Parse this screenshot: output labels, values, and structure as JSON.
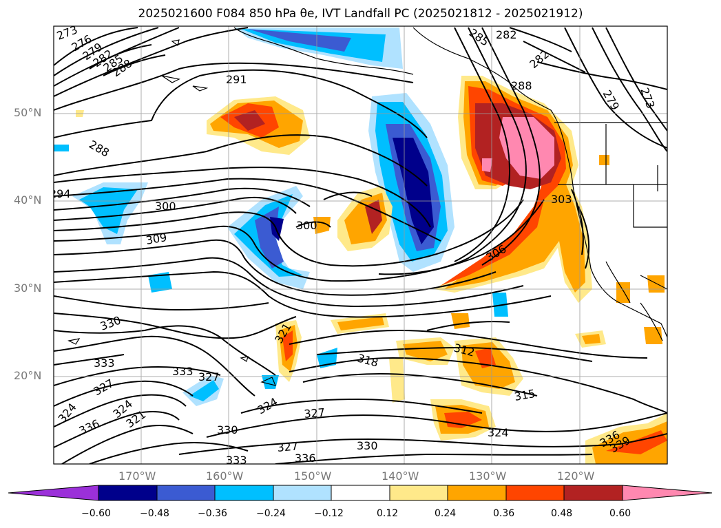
{
  "title": "2025021600 F084 850 hPa θe, IVT Landfall PC (2025021812 - 2025021912)",
  "axes": {
    "lat_labels": [
      "50°N",
      "40°N",
      "30°N",
      "20°N"
    ],
    "lon_labels": [
      "170°W",
      "160°W",
      "150°W",
      "140°W",
      "130°W",
      "120°W"
    ]
  },
  "colorbar": {
    "ticks": [
      "−0.60",
      "−0.48",
      "−0.36",
      "−0.24",
      "−0.12",
      "0.12",
      "0.24",
      "0.36",
      "0.48",
      "0.60"
    ],
    "colors": [
      "#9b30d9",
      "#00008b",
      "#3b5bd2",
      "#00bfff",
      "#b0e2ff",
      "#ffffff",
      "#ffe98a",
      "#ffa500",
      "#ff4500",
      "#b22222",
      "#ff88b0"
    ]
  },
  "contour_labels": [
    {
      "text": "273"
    },
    {
      "text": "276"
    },
    {
      "text": "279"
    },
    {
      "text": "282"
    },
    {
      "text": "285"
    },
    {
      "text": "288"
    },
    {
      "text": "291"
    },
    {
      "text": "288"
    },
    {
      "text": "294"
    },
    {
      "text": "300"
    },
    {
      "text": "309"
    },
    {
      "text": "300"
    },
    {
      "text": "285"
    },
    {
      "text": "282"
    },
    {
      "text": "282"
    },
    {
      "text": "288"
    },
    {
      "text": "279"
    },
    {
      "text": "273"
    },
    {
      "text": "303"
    },
    {
      "text": "306"
    },
    {
      "text": "330"
    },
    {
      "text": "333"
    },
    {
      "text": "327"
    },
    {
      "text": "324"
    },
    {
      "text": "336"
    },
    {
      "text": "321"
    },
    {
      "text": "324"
    },
    {
      "text": "333"
    },
    {
      "text": "327"
    },
    {
      "text": "321"
    },
    {
      "text": "318"
    },
    {
      "text": "312"
    },
    {
      "text": "315"
    },
    {
      "text": "324"
    },
    {
      "text": "330"
    },
    {
      "text": "327"
    },
    {
      "text": "336"
    },
    {
      "text": "333"
    },
    {
      "text": "330"
    },
    {
      "text": "327"
    },
    {
      "text": "324"
    },
    {
      "text": "336"
    },
    {
      "text": "339"
    }
  ]
}
